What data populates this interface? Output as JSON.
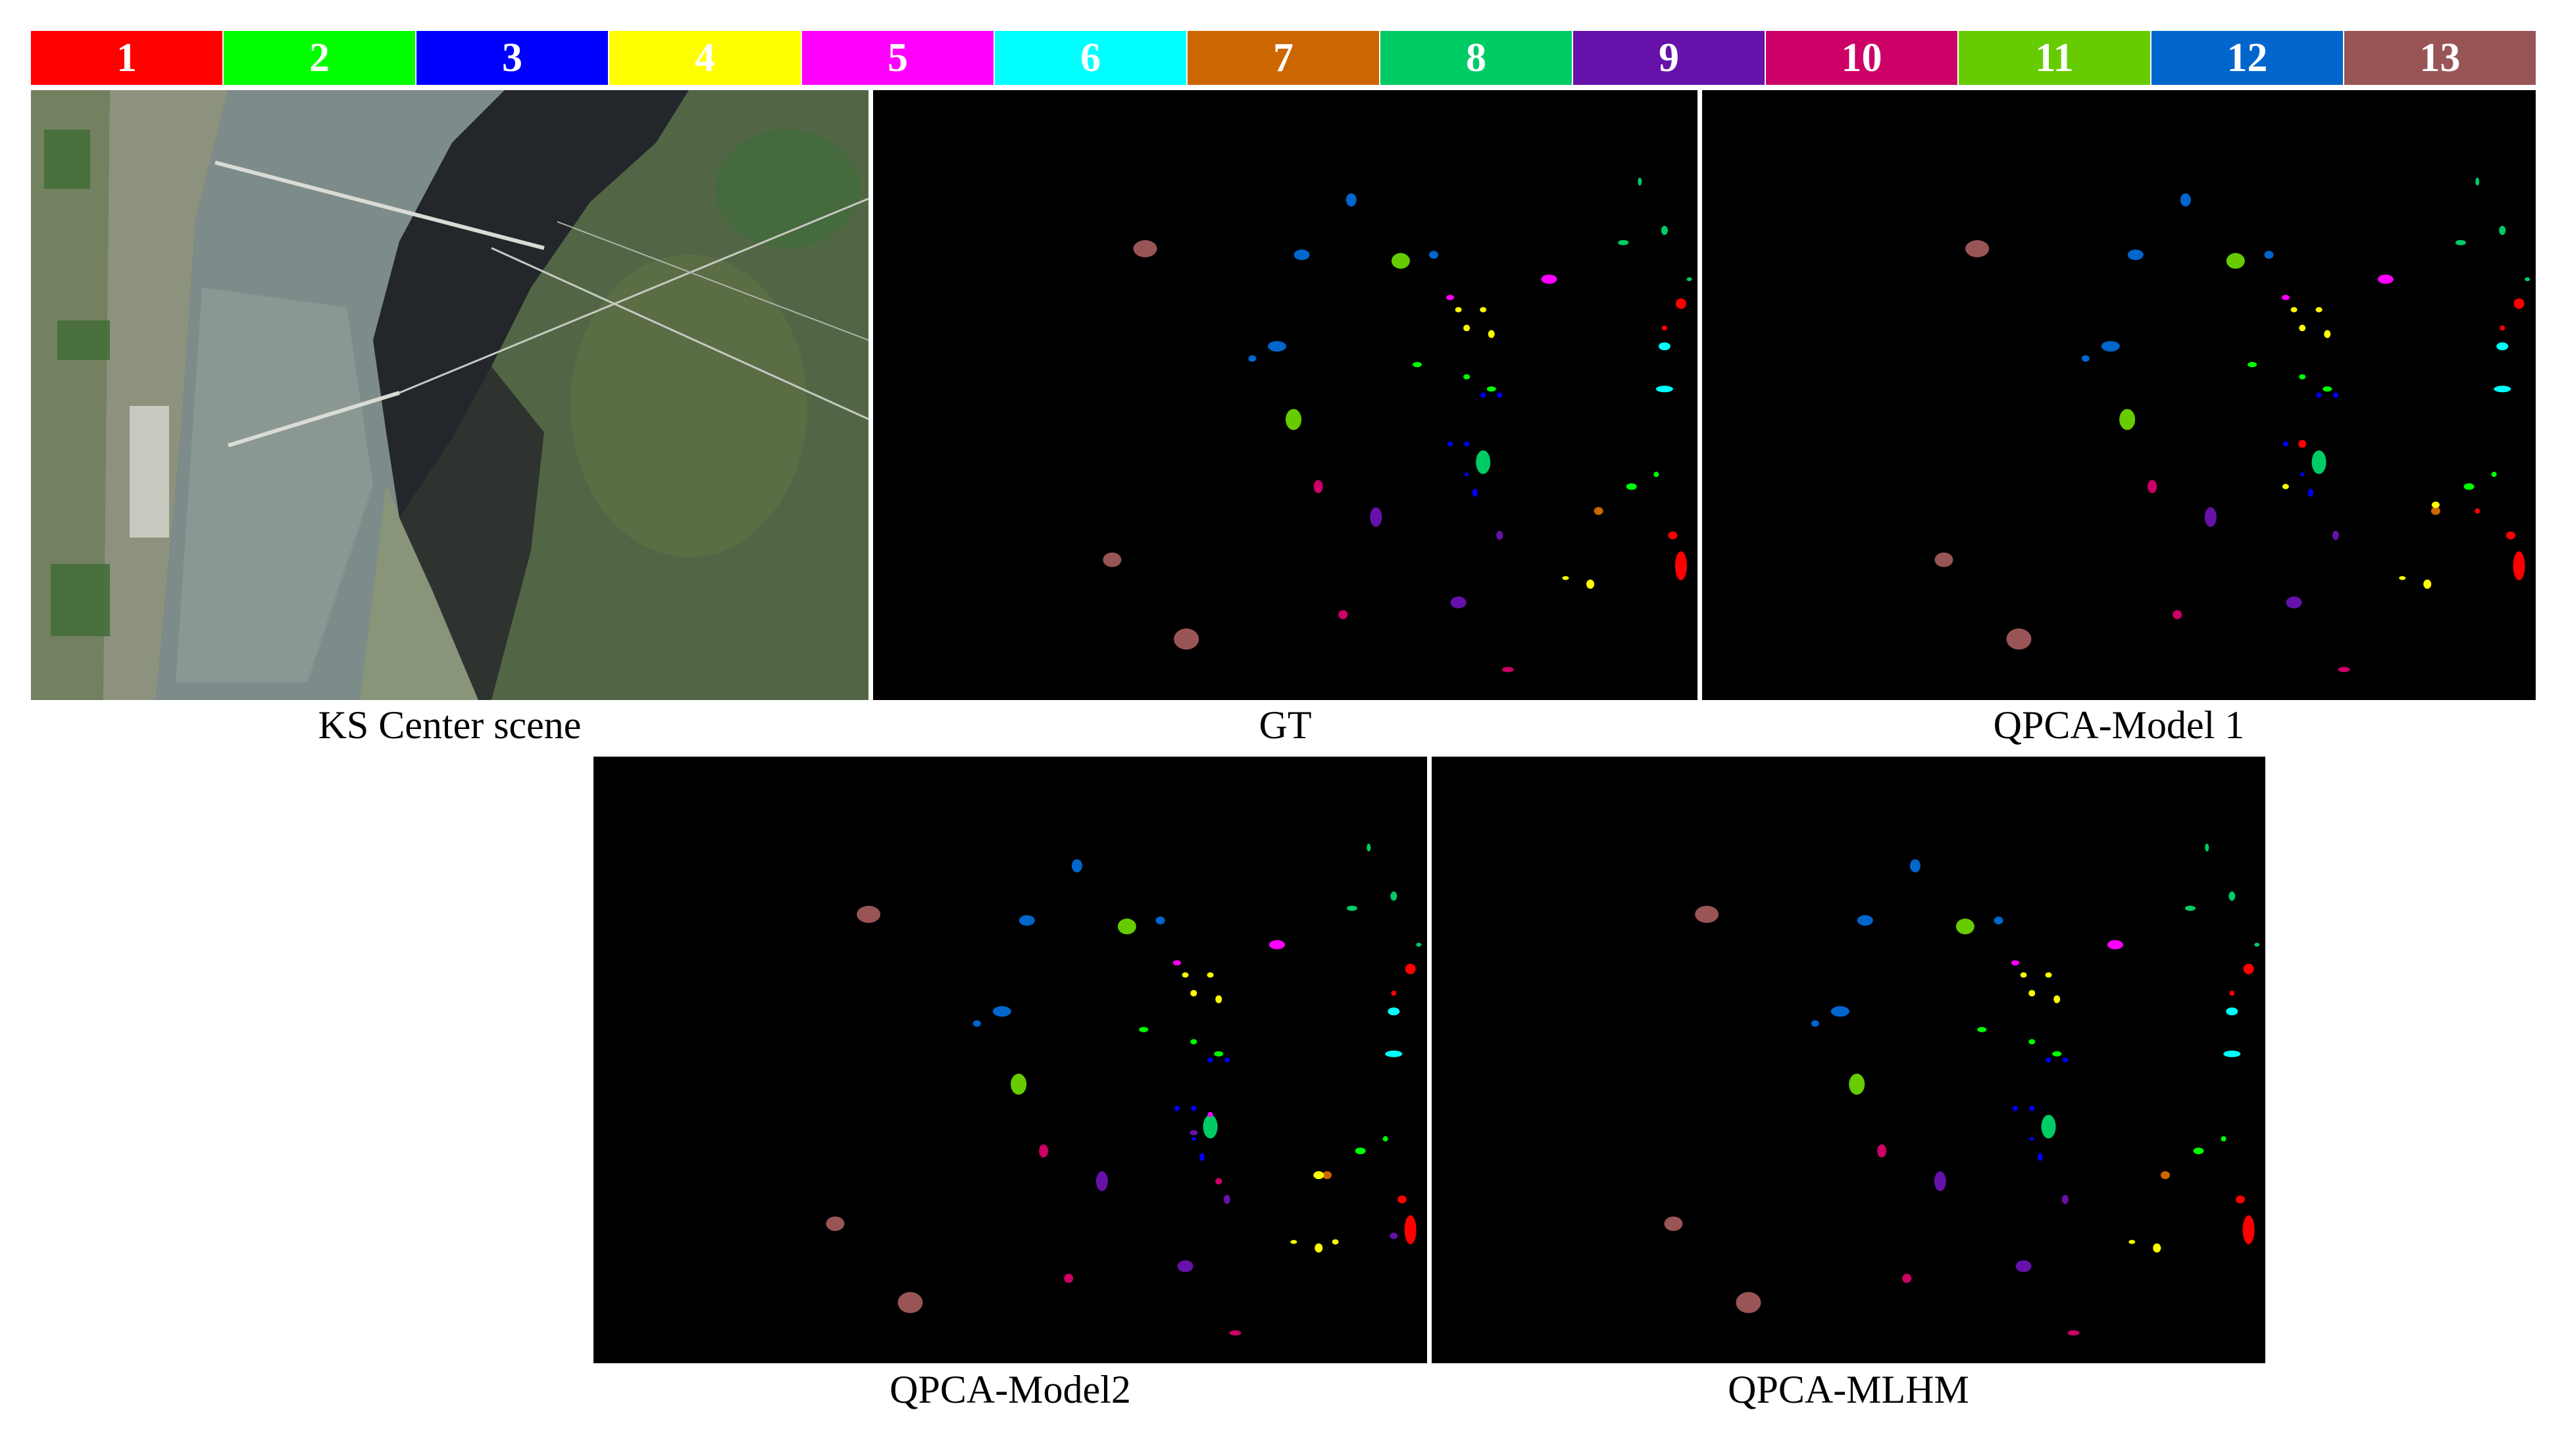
{
  "legend": {
    "classes": [
      {
        "label": "1",
        "color": "#ff0000"
      },
      {
        "label": "2",
        "color": "#00ff00"
      },
      {
        "label": "3",
        "color": "#0000ff"
      },
      {
        "label": "4",
        "color": "#ffff00"
      },
      {
        "label": "5",
        "color": "#ff00ff"
      },
      {
        "label": "6",
        "color": "#00ffff"
      },
      {
        "label": "7",
        "color": "#cc6600"
      },
      {
        "label": "8",
        "color": "#00cc66"
      },
      {
        "label": "9",
        "color": "#6611aa"
      },
      {
        "label": "10",
        "color": "#cc0066"
      },
      {
        "label": "11",
        "color": "#66cc00"
      },
      {
        "label": "12",
        "color": "#0066cc"
      },
      {
        "label": "13",
        "color": "#995555"
      }
    ]
  },
  "panels": {
    "scene": {
      "caption": "KS Center scene"
    },
    "gt": {
      "caption": "GT"
    },
    "model1": {
      "caption": "QPCA-Model 1"
    },
    "model2": {
      "caption": "QPCA-Model2"
    },
    "mlhm": {
      "caption": "QPCA-MLHM"
    }
  }
}
